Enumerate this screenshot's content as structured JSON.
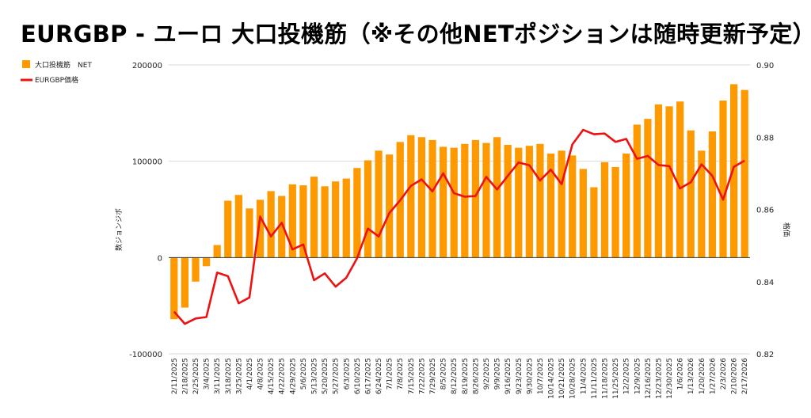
{
  "chart_data": {
    "type": "bar+line",
    "title": "EURGBP - ユーロ 大口投機筋（※その他NETポジションは随時更新予定）",
    "left_axis_label": "数ジョンジポ",
    "right_axis_label": "格価",
    "left_ticks": [
      "200000",
      "100000",
      "0",
      "-100000"
    ],
    "right_ticks": [
      "0.90",
      "0.88",
      "0.86",
      "0.84",
      "0.82"
    ],
    "y_left_range": [
      -100000,
      200000
    ],
    "y_right_range": [
      0.82,
      0.9
    ],
    "grid": "horizontal",
    "legend_position": "top-left",
    "categories": [
      "2/11/2025",
      "2/18/2025",
      "2/25/2025",
      "3/4/2025",
      "3/11/2025",
      "3/18/2025",
      "3/25/2025",
      "4/1/2025",
      "4/8/2025",
      "4/15/2025",
      "4/22/2025",
      "4/29/2025",
      "5/6/2025",
      "5/13/2025",
      "5/20/2025",
      "5/27/2025",
      "6/3/2025",
      "6/10/2025",
      "6/17/2025",
      "6/24/2025",
      "7/1/2025",
      "7/8/2025",
      "7/15/2025",
      "7/22/2025",
      "7/29/2025",
      "8/5/2025",
      "8/12/2025",
      "8/19/2025",
      "8/26/2025",
      "9/2/2025",
      "9/9/2025",
      "9/16/2025",
      "9/23/2025",
      "9/30/2025",
      "10/7/2025",
      "10/14/2025",
      "10/21/2025",
      "10/28/2025",
      "11/4/2025",
      "11/11/2025",
      "11/18/2025",
      "11/25/2025",
      "12/2/2025",
      "12/9/2025",
      "12/16/2025",
      "12/23/2025",
      "12/30/2025",
      "1/6/2026",
      "1/13/2026",
      "1/20/2026",
      "1/27/2026",
      "2/3/2026",
      "2/10/2026",
      "2/17/2026"
    ],
    "series": [
      {
        "name": "大口投機筋　NET",
        "type": "bar",
        "axis": "left",
        "color": "#ff9900",
        "values": [
          -64000,
          -52000,
          -25000,
          -9000,
          13000,
          59000,
          65000,
          51000,
          60000,
          69000,
          64000,
          76000,
          75000,
          84000,
          74000,
          79000,
          82000,
          93000,
          101000,
          111000,
          107000,
          120000,
          127000,
          125000,
          122000,
          115000,
          114000,
          118000,
          122000,
          119000,
          125000,
          117000,
          114000,
          116000,
          118000,
          108000,
          111000,
          106000,
          92000,
          73000,
          99000,
          94000,
          108000,
          138000,
          144000,
          159000,
          157000,
          162000,
          132000,
          111000,
          131000,
          163000,
          180000,
          174000
        ]
      },
      {
        "name": "EURGBP価格",
        "type": "line",
        "axis": "right",
        "color": "#ee1111",
        "values": [
          0.8317,
          0.8283,
          0.8298,
          0.8302,
          0.8425,
          0.8415,
          0.834,
          0.8356,
          0.858,
          0.8525,
          0.8563,
          0.8489,
          0.8503,
          0.8404,
          0.8423,
          0.8386,
          0.8411,
          0.8465,
          0.8547,
          0.8525,
          0.859,
          0.8625,
          0.8665,
          0.8683,
          0.865,
          0.87,
          0.8645,
          0.8635,
          0.8637,
          0.869,
          0.8655,
          0.8693,
          0.873,
          0.8722,
          0.868,
          0.871,
          0.867,
          0.878,
          0.882,
          0.8808,
          0.881,
          0.8787,
          0.8795,
          0.874,
          0.8748,
          0.8723,
          0.872,
          0.8658,
          0.8675,
          0.8725,
          0.8693,
          0.8627,
          0.8718,
          0.8735
        ]
      }
    ]
  }
}
